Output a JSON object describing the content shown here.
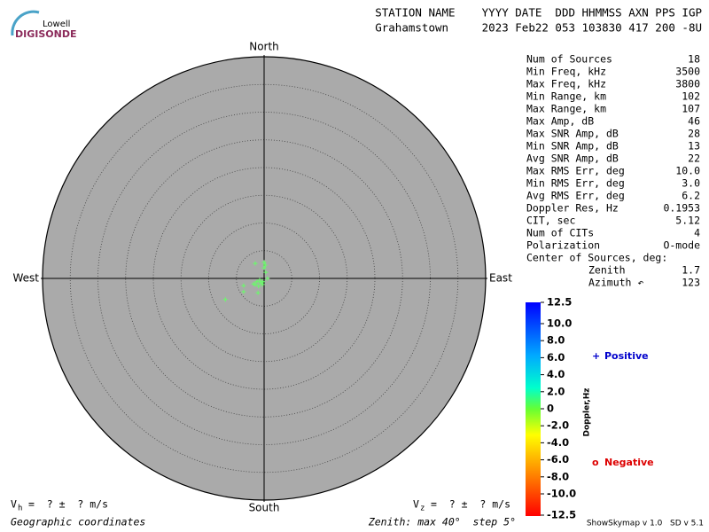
{
  "logo": {
    "line1": "Lowell",
    "line2": "DIGISONDE"
  },
  "header": {
    "labels": "STATION NAME    YYYY DATE  DDD HHMMSS AXN PPS IGP",
    "values": "Grahamstown     2023 Feb22 053 103830 417 200 -8U"
  },
  "stats": [
    [
      "Num of Sources",
      "18"
    ],
    [
      "Min Freq, kHz",
      "3500"
    ],
    [
      "Max Freq, kHz",
      "3800"
    ],
    [
      "Min Range, km",
      "102"
    ],
    [
      "Max Range, km",
      "107"
    ],
    [
      "Max Amp, dB",
      "46"
    ],
    [
      "Max SNR Amp, dB",
      "28"
    ],
    [
      "Min SNR Amp, dB",
      "13"
    ],
    [
      "Avg SNR Amp, dB",
      "22"
    ],
    [
      "Max RMS Err, deg",
      "10.0"
    ],
    [
      "Min RMS Err, deg",
      "3.0"
    ],
    [
      "Avg RMS Err, deg",
      "6.2"
    ],
    [
      "Doppler Res, Hz",
      "0.1953"
    ],
    [
      "CIT, sec",
      "5.12"
    ],
    [
      "Num of CITs",
      "4"
    ],
    [
      "Polarization",
      "O-mode"
    ]
  ],
  "center": {
    "title": "Center of Sources, deg:",
    "rows": [
      [
        "Zenith",
        "1.7"
      ],
      [
        "Azimuth ↶",
        "123"
      ]
    ]
  },
  "footer": {
    "vh_symbol": "V",
    "vh_sub": "h",
    "vh_text": "=  ? ±  ? m/s",
    "vz_symbol": "V",
    "vz_sub": "z",
    "vz_text": "=  ? ±  ? m/s",
    "coords": "Geographic coordinates",
    "zenith": "Zenith: max 40°  step 5°",
    "version": "ShowSkymap v 1.0   SD v 5.1"
  },
  "chart_data": {
    "type": "polar-scatter",
    "directions": {
      "north": "North",
      "south": "South",
      "east": "East",
      "west": "West"
    },
    "rlim": [
      0,
      40
    ],
    "rticks": [
      5,
      10,
      15,
      20,
      25,
      30,
      35,
      40
    ],
    "series": [
      {
        "name": "Positive",
        "color": "#66ff66",
        "x": [
          0,
          0,
          0.3,
          0.6,
          -0.2,
          -0.6,
          -1.3,
          -1.6,
          -1.0,
          -0.3,
          -1.6,
          -3.7,
          -3.7,
          -1.1,
          -7.0,
          -1.9,
          -0.8,
          0.2
        ],
        "y": [
          2.9,
          1.9,
          1.1,
          0,
          -0.6,
          -0.8,
          -0.6,
          -1.1,
          -1.4,
          -1.1,
          2.7,
          -1.3,
          -2.4,
          -2.6,
          -3.8,
          -1.0,
          -0.3,
          2.4
        ]
      }
    ],
    "legend": [
      {
        "symbol": "+",
        "name": "Positive",
        "color": "#0000cc"
      },
      {
        "symbol": "o",
        "name": "Negative",
        "color": "#dd0000"
      }
    ],
    "colorbar": {
      "label": "Doppler,Hz",
      "lim": [
        -12.5,
        12.5
      ],
      "ticks": [
        12.5,
        {
          "value": 10,
          "label": "10.0"
        },
        {
          "value": 8,
          "label": "8.0"
        },
        {
          "value": 6,
          "label": "6.0"
        },
        {
          "value": 4,
          "label": "4.0"
        },
        {
          "value": 2,
          "label": "2.0"
        },
        0,
        {
          "value": -2,
          "label": "-2.0"
        },
        {
          "value": -4,
          "label": "-4.0"
        },
        {
          "value": -6,
          "label": "-6.0"
        },
        {
          "value": -8,
          "label": "-8.0"
        },
        {
          "value": -10,
          "label": "-10.0"
        },
        -12.5
      ]
    }
  }
}
